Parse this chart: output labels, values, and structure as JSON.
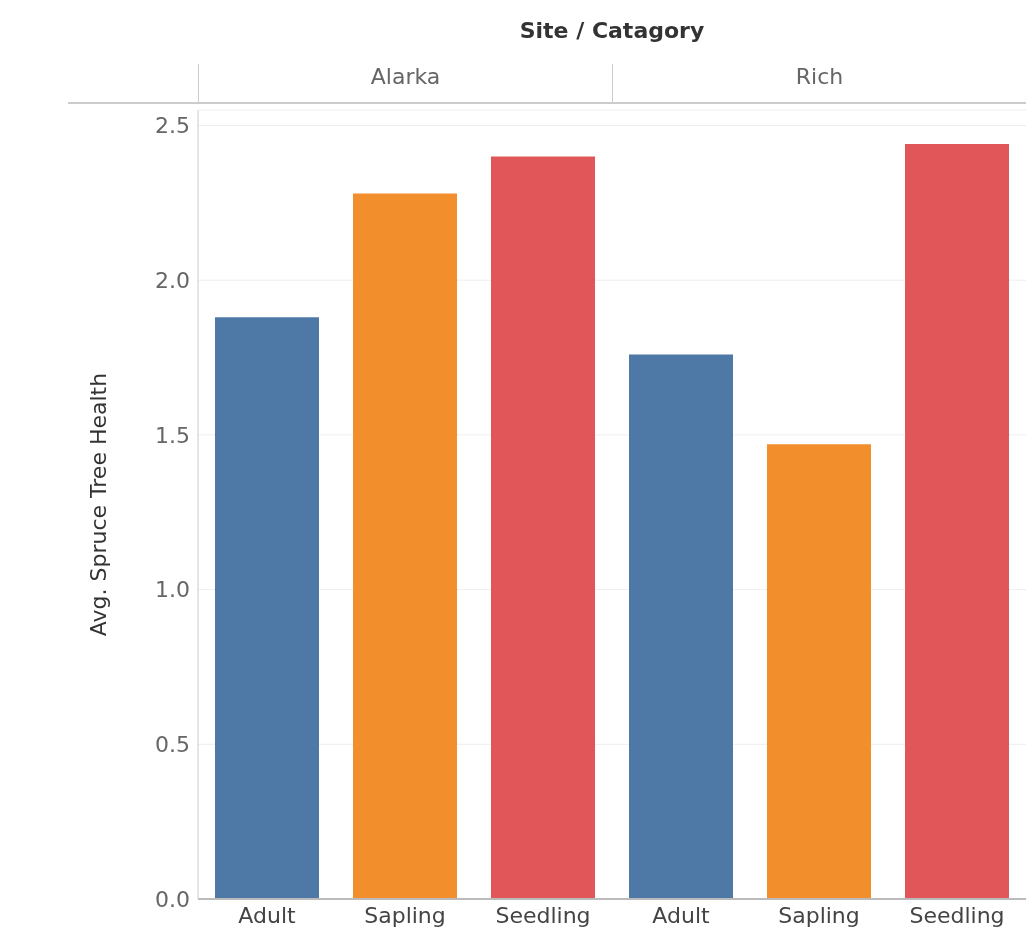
{
  "chart_data": {
    "type": "bar",
    "title": "Site / Catagory",
    "ylabel": "Avg. Spruce Tree Health",
    "annotations": [
      "Alarka",
      "Rich"
    ],
    "categories": [
      "Adult",
      "Sapling",
      "Seedling",
      "Adult",
      "Sapling",
      "Seedling"
    ],
    "values": [
      1.88,
      2.28,
      2.4,
      1.76,
      1.47,
      2.44
    ],
    "colors": [
      "#4e79a7",
      "#f28e2b",
      "#e15759",
      "#4e79a7",
      "#f28e2b",
      "#e15759"
    ],
    "ylim": [
      0,
      2.55
    ],
    "yticks": [
      {
        "value": 0,
        "label": "0.0"
      },
      {
        "value": 0.5,
        "label": "0.5"
      },
      {
        "value": 1,
        "label": "1.0"
      },
      {
        "value": 1.5,
        "label": "1.5"
      },
      {
        "value": 2,
        "label": "2.0"
      },
      {
        "value": 2.5,
        "label": "2.5"
      }
    ],
    "grid": "y"
  }
}
